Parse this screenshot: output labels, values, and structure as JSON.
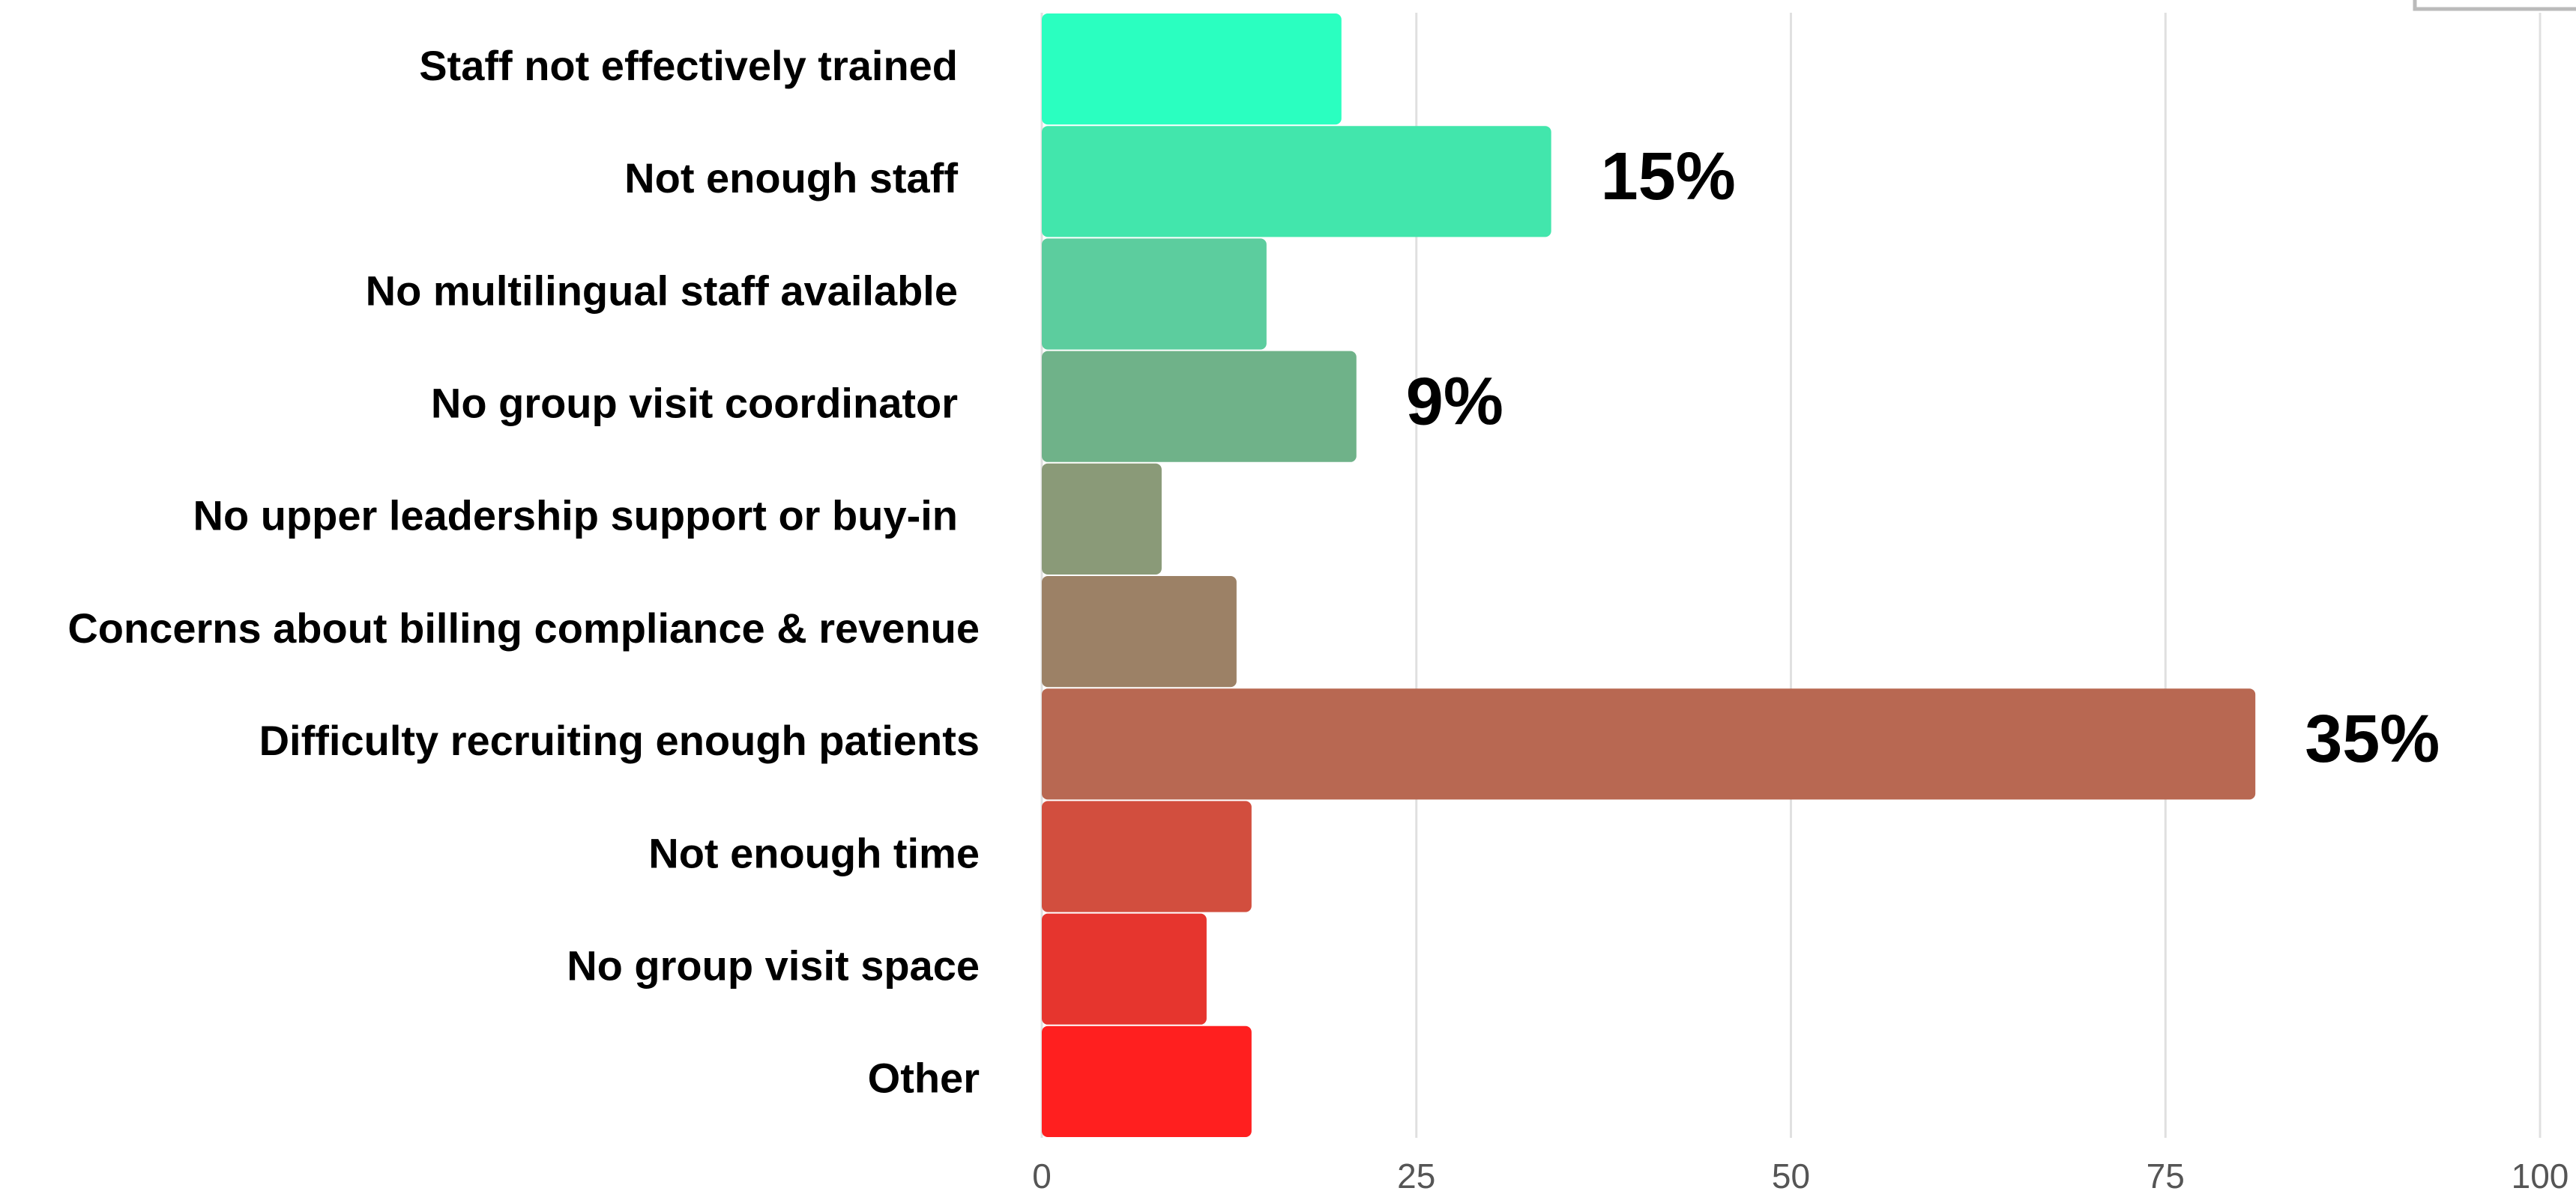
{
  "chart_data": {
    "type": "bar",
    "orientation": "horizontal",
    "categories": [
      "Staff not effectively trained",
      "Not enough staff",
      "No multilingual staff available",
      "No group visit coordinator",
      "No upper leadership support or buy-in",
      "Concerns about billing compliance & revenue",
      "Difficulty recruiting enough patients",
      "Not enough time",
      "No group visit space",
      "Other"
    ],
    "values": [
      20,
      34,
      15,
      21,
      8,
      13,
      81,
      14,
      11,
      14
    ],
    "value_labels": [
      null,
      "15%",
      null,
      "9%",
      null,
      null,
      "35%",
      null,
      null,
      null
    ],
    "colors": [
      "#2affc0",
      "#42e6ac",
      "#5ccd9e",
      "#6fb289",
      "#8a9a78",
      "#9c8166",
      "#b86852",
      "#d24e3e",
      "#e6352e",
      "#ff1f1f"
    ],
    "xlim": [
      0,
      100
    ],
    "xticks": [
      0,
      25,
      50,
      75,
      100
    ],
    "grid": true
  }
}
